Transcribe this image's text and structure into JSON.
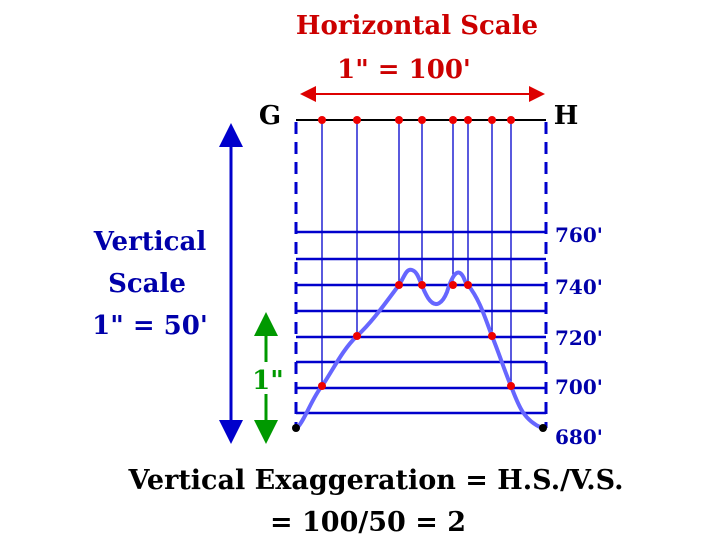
{
  "horizontal_scale": {
    "title": "Horizontal Scale",
    "ratio": "1\" = 100'"
  },
  "points": {
    "start": "G",
    "end": "H"
  },
  "vertical_scale": {
    "line1": "Vertical",
    "line2": "Scale",
    "line3": "1\" = 50'",
    "unit_label": "1\""
  },
  "elevations": [
    {
      "label": "760'",
      "value": 760
    },
    {
      "label": "740'",
      "value": 740
    },
    {
      "label": "720'",
      "value": 720
    },
    {
      "label": "700'",
      "value": 700
    },
    {
      "label": "680'",
      "value": 680
    }
  ],
  "formula": {
    "line1": "Vertical Exaggeration = H.S./V.S.",
    "line2": "= 100/50 = 2"
  },
  "colors": {
    "profile": "#6666ff",
    "grid": "#0000cc",
    "arrow_blue": "#0000cc",
    "arrow_green": "#009900",
    "arrow_red": "#dd0000",
    "text_red": "#cc0000",
    "text_blue": "#0000aa",
    "text_dark": "#000000",
    "point_red": "#ee0000"
  }
}
